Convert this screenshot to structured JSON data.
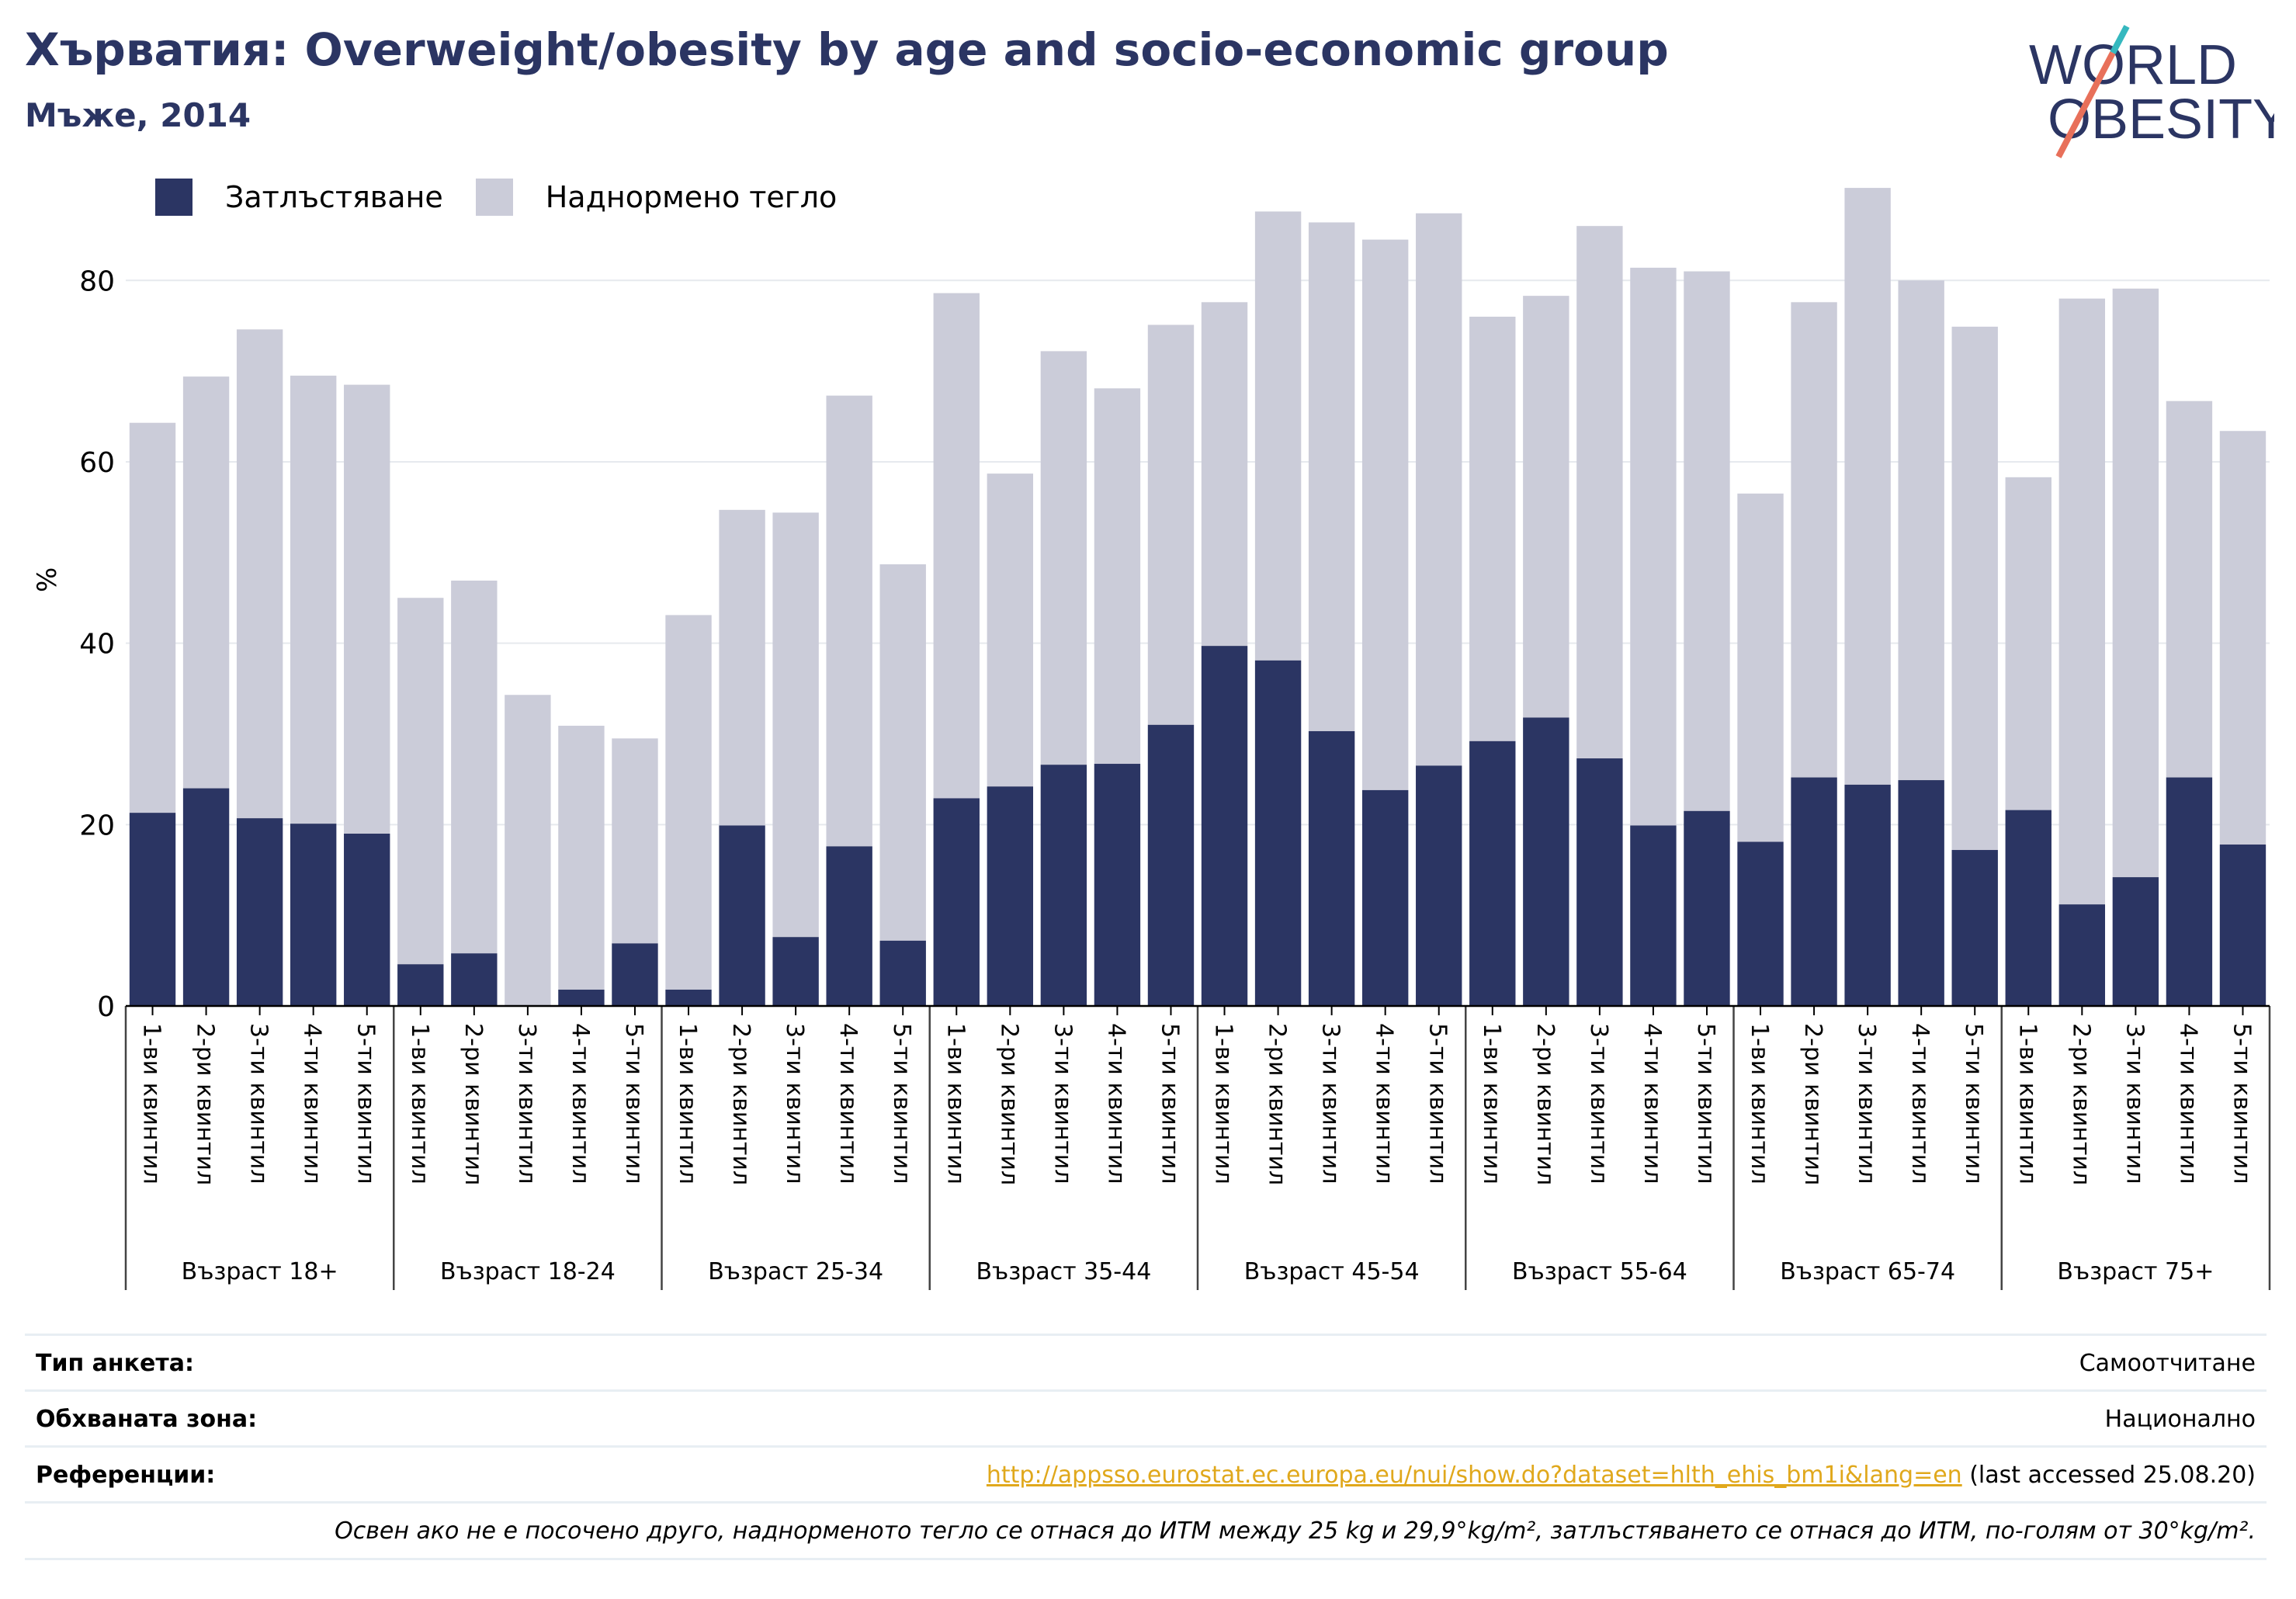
{
  "title": "Хърватия: Overweight/obesity by age and socio-economic group",
  "subtitle": "Мъже, 2014",
  "logo": {
    "line1": "WORLD",
    "line2": "OBESITY"
  },
  "colors": {
    "obesity": "#2b3563",
    "overweight": "#cbccd9",
    "title": "#2b3563",
    "link": "#e0a81c",
    "logo_teal": "#35b8bf",
    "logo_coral": "#e8705a"
  },
  "legend": {
    "obesity": "Затлъстяване",
    "overweight": "Наднормено тегло"
  },
  "chart_data": {
    "type": "bar",
    "stacked": true,
    "ylabel": "%",
    "ylim": [
      0,
      95
    ],
    "yticks": [
      0,
      20,
      40,
      60,
      80
    ],
    "grid": true,
    "legend_position": "top-left",
    "quintile_labels": [
      "1-ви квинтил",
      "2-ри квинтил",
      "3-ти квинтил",
      "4-ти квинтил",
      "5-ти квинтил"
    ],
    "groups": [
      {
        "label": "Възраст 18+",
        "obesity": [
          21.3,
          24.0,
          20.7,
          20.1,
          19.0
        ],
        "total": [
          64.3,
          69.4,
          74.6,
          69.5,
          68.5
        ]
      },
      {
        "label": "Възраст 18-24",
        "obesity": [
          4.6,
          5.8,
          0,
          1.8,
          6.9
        ],
        "total": [
          45.0,
          46.9,
          34.3,
          30.9,
          29.5
        ]
      },
      {
        "label": "Възраст 25-34",
        "obesity": [
          1.8,
          19.9,
          7.6,
          17.6,
          7.2
        ],
        "total": [
          43.1,
          54.7,
          54.4,
          67.3,
          48.7
        ]
      },
      {
        "label": "Възраст 35-44",
        "obesity": [
          22.9,
          24.2,
          26.6,
          26.7,
          31.0
        ],
        "total": [
          78.6,
          58.7,
          72.2,
          68.1,
          75.1
        ]
      },
      {
        "label": "Възраст 45-54",
        "obesity": [
          39.7,
          38.1,
          30.3,
          23.8,
          26.5
        ],
        "total": [
          77.6,
          87.6,
          86.4,
          84.5,
          87.4
        ]
      },
      {
        "label": "Възраст 55-64",
        "obesity": [
          29.2,
          31.8,
          27.3,
          19.9,
          21.5
        ],
        "total": [
          76.0,
          78.3,
          86.0,
          81.4,
          81.0
        ]
      },
      {
        "label": "Възраст 65-74",
        "obesity": [
          18.1,
          25.2,
          24.4,
          24.9,
          17.2
        ],
        "total": [
          56.5,
          77.6,
          90.2,
          80.0,
          74.9
        ]
      },
      {
        "label": "Възраст 75+",
        "obesity": [
          21.6,
          11.2,
          14.2,
          25.2,
          17.8
        ],
        "total": [
          58.3,
          78.0,
          79.1,
          66.7,
          63.4
        ]
      }
    ]
  },
  "meta": {
    "survey_label": "Тип анкета:",
    "survey_value": "Самоотчитане",
    "area_label": "Обхваната зона:",
    "area_value": "Национално",
    "ref_label": "Референции:",
    "ref_link": "http://appsso.eurostat.ec.europa.eu/nui/show.do?dataset=hlth_ehis_bm1i&lang=en",
    "ref_suffix": " (last accessed 25.08.20)",
    "note": "Освен ако не е посочено друго, наднорменото тегло се отнася до ИТМ между 25 kg и 29,9°kg/m², затлъстяването се отнася до ИТМ, по-голям от 30°kg/m²."
  }
}
